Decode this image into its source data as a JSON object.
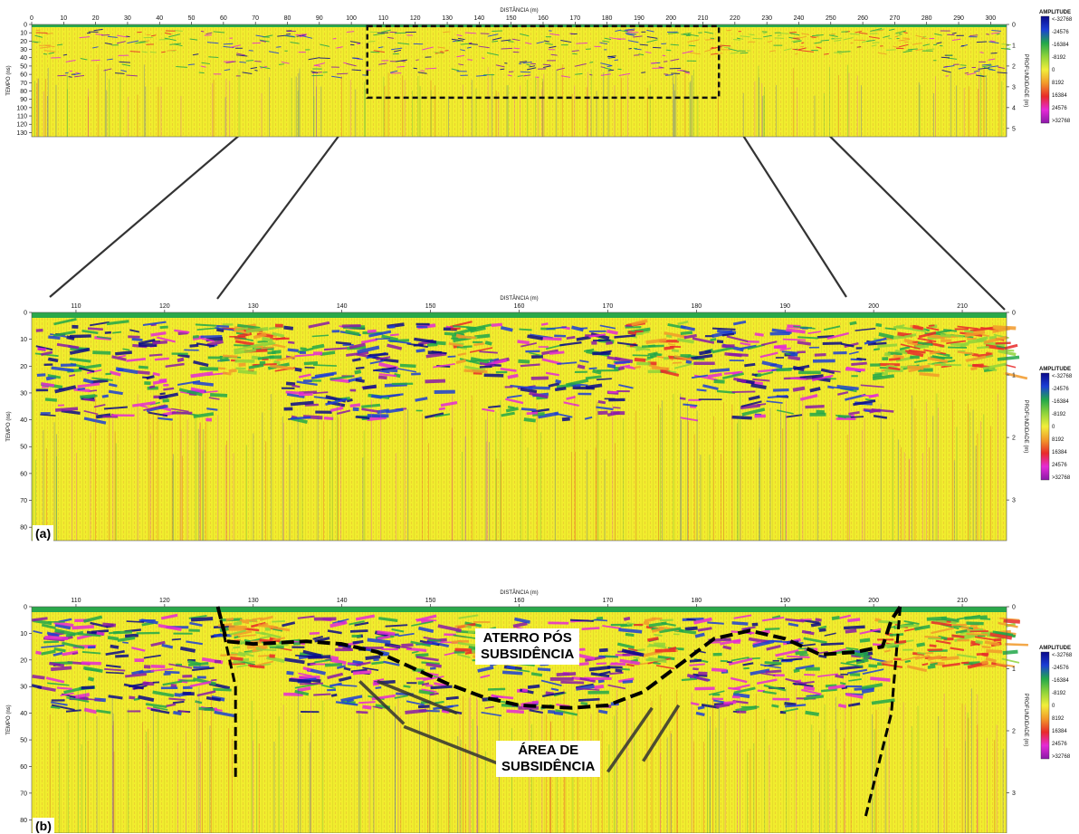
{
  "colors": {
    "amplitude_scale": [
      "#0a0a8a",
      "#1c3fd6",
      "#22a84a",
      "#8fd43a",
      "#f2ee3a",
      "#f29a2a",
      "#e82a2a",
      "#e62ad6",
      "#8a1aa8"
    ],
    "background": "#f1ec2e",
    "annotation_line": "#000000",
    "connector_line": "#333333"
  },
  "chart_data": [
    {
      "id": "overview",
      "type": "heatmap",
      "xlabel": "DISTÂNCIA (m)",
      "ylabel": "TEMPO (ns)",
      "y2label": "PROFUNDIDADE (m)",
      "xlim": [
        0,
        305
      ],
      "ylim": [
        0,
        135
      ],
      "xticks": [
        "0",
        "10",
        "20",
        "30",
        "40",
        "50",
        "60",
        "70",
        "80",
        "90",
        "100",
        "110",
        "120",
        "130",
        "140",
        "150",
        "160",
        "170",
        "180",
        "190",
        "200",
        "210",
        "220",
        "230",
        "240",
        "250",
        "260",
        "270",
        "280",
        "290",
        "300"
      ],
      "yticks": [
        "0",
        "10",
        "20",
        "30",
        "40",
        "50",
        "60",
        "70",
        "80",
        "90",
        "100",
        "110",
        "120",
        "130"
      ],
      "y2ticks": [
        "0",
        "1",
        "2",
        "3",
        "4",
        "5"
      ],
      "zoom_box": {
        "x": [
          105,
          215
        ],
        "y": [
          2,
          88
        ]
      },
      "legend": {
        "title": "AMPLITUDE",
        "ticks": [
          "<-32768",
          "-24576",
          "-16384",
          "-8192",
          "0",
          "8192",
          "16384",
          "24576",
          ">32768"
        ]
      }
    },
    {
      "id": "panel-a",
      "panel_label": "(a)",
      "type": "heatmap",
      "xlabel": "DISTÂNCIA (m)",
      "ylabel": "TEMPO (ns)",
      "y2label": "PROFUNDIDADE (m)",
      "xlim": [
        105,
        215
      ],
      "ylim": [
        0,
        85
      ],
      "xticks": [
        "110",
        "120",
        "130",
        "140",
        "150",
        "160",
        "170",
        "180",
        "190",
        "200",
        "210"
      ],
      "yticks": [
        "0",
        "10",
        "20",
        "30",
        "40",
        "50",
        "60",
        "70",
        "80"
      ],
      "y2ticks": [
        "0",
        "1",
        "2",
        "3"
      ],
      "legend": {
        "title": "AMPLITUDE",
        "ticks": [
          "<-32768",
          "-24576",
          "-16384",
          "-8192",
          "0",
          "8192",
          "16384",
          "24576",
          ">32768"
        ]
      }
    },
    {
      "id": "panel-b",
      "panel_label": "(b)",
      "type": "heatmap",
      "xlabel": "DISTÂNCIA (m)",
      "ylabel": "TEMPO (ns)",
      "y2label": "PROFUNDIDADE (m)",
      "xlim": [
        105,
        215
      ],
      "ylim": [
        0,
        85
      ],
      "xticks": [
        "110",
        "120",
        "130",
        "140",
        "150",
        "160",
        "170",
        "180",
        "190",
        "200",
        "210"
      ],
      "yticks": [
        "0",
        "10",
        "20",
        "30",
        "40",
        "50",
        "60",
        "70",
        "80"
      ],
      "y2ticks": [
        "0",
        "1",
        "2",
        "3"
      ],
      "legend": {
        "title": "AMPLITUDE",
        "ticks": [
          "<-32768",
          "-24576",
          "-16384",
          "-8192",
          "0",
          "8192",
          "16384",
          "24576",
          ">32768"
        ]
      },
      "annotations": [
        {
          "text": "ATERRO PÓS\nSUBSIDÊNCIA",
          "x": 165,
          "y": 14
        },
        {
          "text": "ÁREA DE\nSUBSIDÊNCIA",
          "x": 166,
          "y": 56
        }
      ],
      "interpreted_boundary": [
        [
          126,
          0
        ],
        [
          127,
          13
        ],
        [
          130,
          14
        ],
        [
          136,
          13
        ],
        [
          140,
          14
        ],
        [
          144,
          17
        ],
        [
          148,
          23
        ],
        [
          152,
          29
        ],
        [
          156,
          34
        ],
        [
          160,
          37
        ],
        [
          166,
          38
        ],
        [
          170,
          37
        ],
        [
          174,
          32
        ],
        [
          178,
          22
        ],
        [
          182,
          12
        ],
        [
          186,
          9
        ],
        [
          190,
          12
        ],
        [
          194,
          18
        ],
        [
          198,
          17
        ],
        [
          201,
          15
        ],
        [
          202,
          5
        ],
        [
          203,
          0
        ]
      ],
      "left_wall": [
        [
          126,
          0
        ],
        [
          128,
          30
        ],
        [
          128,
          65
        ]
      ],
      "right_wall": [
        [
          203,
          0
        ],
        [
          202,
          40
        ],
        [
          199,
          80
        ]
      ],
      "subsidence_pointers": [
        [
          [
            142,
            28
          ],
          [
            147,
            44
          ]
        ],
        [
          [
            144,
            28
          ],
          [
            153,
            40
          ]
        ],
        [
          [
            147,
            45
          ],
          [
            160,
            62
          ]
        ],
        [
          [
            175,
            38
          ],
          [
            170,
            62
          ]
        ],
        [
          [
            178,
            37
          ],
          [
            174,
            58
          ]
        ]
      ]
    }
  ]
}
